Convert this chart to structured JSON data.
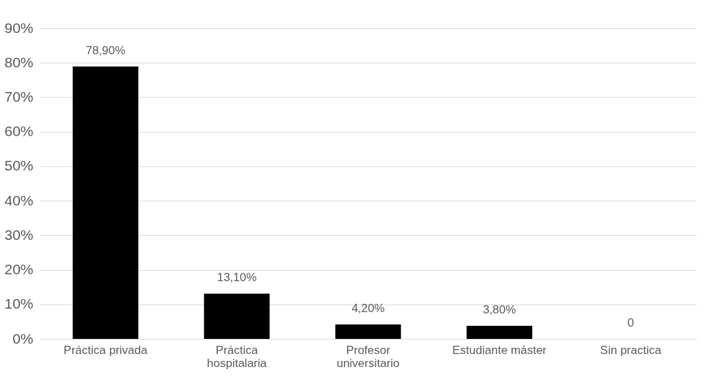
{
  "chart_data": {
    "type": "bar",
    "categories": [
      "Práctica privada",
      "Práctica\nhospitalaria",
      "Profesor\nuniversitario",
      "Estudiante máster",
      "Sin practica"
    ],
    "values": [
      78.9,
      13.1,
      4.2,
      3.8,
      0
    ],
    "color": "#000000",
    "value_labels": [
      "78,90%",
      "13,10%",
      "4,20%",
      "3,80%",
      "0"
    ],
    "ylim": [
      0,
      90
    ],
    "yticks": [
      {
        "value": 0,
        "label": "0%"
      },
      {
        "value": 10,
        "label": "10%"
      },
      {
        "value": 20,
        "label": "20%"
      },
      {
        "value": 30,
        "label": "30%"
      },
      {
        "value": 40,
        "label": "40%"
      },
      {
        "value": 50,
        "label": "50%"
      },
      {
        "value": 60,
        "label": "60%"
      },
      {
        "value": 70,
        "label": "70%"
      },
      {
        "value": 80,
        "label": "80%"
      },
      {
        "value": 90,
        "label": "90%"
      }
    ],
    "grid": "y"
  }
}
